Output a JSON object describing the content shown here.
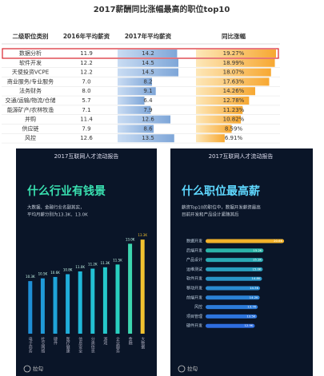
{
  "table": {
    "title": "2017薪酬同比涨幅最高的职位top10",
    "columns": [
      "二级职位类别",
      "2016年平均薪资",
      "2017年平均薪资",
      "同比涨幅"
    ],
    "highlight_row": 0,
    "rows": [
      [
        "数据分析",
        "11.9",
        "14.2",
        "19.27%"
      ],
      [
        "软件开发",
        "12.2",
        "14.5",
        "18.99%"
      ],
      [
        "天使投资VCPE",
        "12.2",
        "14.5",
        "18.07%"
      ],
      [
        "商业服务/专业服务",
        "7.0",
        "8.2",
        "17.63%"
      ],
      [
        "法务财务",
        "8.0",
        "9.1",
        "14.26%"
      ],
      [
        "交通/运输/物流/仓储",
        "5.7",
        "6.4",
        "12.78%"
      ],
      [
        "能源矿产/农林牧渔",
        "7.1",
        "7.9",
        "11.23%"
      ],
      [
        "并购",
        "11.4",
        "12.6",
        "10.82%"
      ],
      [
        "供应链",
        "7.9",
        "8.6",
        "8.59%"
      ],
      [
        "风控",
        "12.6",
        "13.5",
        "6.91%"
      ]
    ]
  },
  "chart_data": [
    {
      "type": "bar",
      "header": "2017互联网人才流动报告",
      "title": "什么行业有钱景",
      "subtitle": [
        "大数据、金融行业名副其实，",
        "平均月薪分别为13.3K、13.0K"
      ],
      "categories": [
        "电子商务",
        "社交网络",
        "硬件",
        "医疗健康",
        "信息安全",
        "分类信息",
        "游戏",
        "企业服务",
        "金融",
        "大数据"
      ],
      "values": [
        10.3,
        10.5,
        10.6,
        10.8,
        11.0,
        11.2,
        11.3,
        11.5,
        13.0,
        13.3
      ],
      "value_labels": [
        "10.3K",
        "10.5K",
        "10.6K",
        "10.8K",
        "11.0K",
        "11.2K",
        "11.3K",
        "11.5K",
        "13.0K",
        "13.3K"
      ],
      "colors": [
        "#1f8fd6",
        "#1f9ad8",
        "#1fa4d9",
        "#20aedb",
        "#21b8d9",
        "#23c1d4",
        "#25c9cc",
        "#29d0c0",
        "#3dd6b0",
        "#f2c230"
      ],
      "ylim": [
        6.5,
        14
      ],
      "footer": "拉勾"
    },
    {
      "type": "hbar",
      "header": "2017互联网人才流动报告",
      "title": "什么职位最高薪",
      "subtitle": [
        "薪资Top10的职位中，数据开发薪资最高",
        "目前开发和产品设计紧随其后"
      ],
      "categories": [
        "数据开发",
        "后端开发",
        "产品设计",
        "运维测试",
        "软件开发",
        "移动开发",
        "前端开发",
        "风控",
        "项目管理",
        "硬件开发"
      ],
      "values": [
        20.6,
        15.2,
        15.1,
        15.0,
        14.8,
        14.3,
        14.2,
        13.7,
        13.5,
        12.9
      ],
      "value_labels": [
        "20.6K",
        "15.2K",
        "15.1K",
        "15.0K",
        "14.8K",
        "14.3K",
        "14.2K",
        "13.7K",
        "13.5K",
        "12.9K"
      ],
      "colors": [
        "#f2b22a",
        "#2bb3a8",
        "#2aa9b3",
        "#2a9fbd",
        "#2a95c6",
        "#2a8bd0",
        "#2b82d6",
        "#2c7bd9",
        "#2d74dc",
        "#2e6ddf"
      ],
      "xlim": [
        0,
        21
      ],
      "footer": "拉勾"
    }
  ]
}
